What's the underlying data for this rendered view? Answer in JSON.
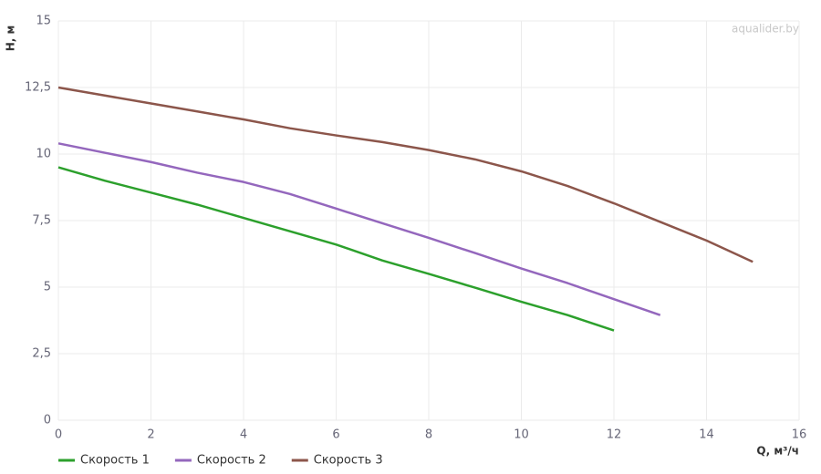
{
  "chart_data": {
    "type": "line",
    "watermark": "aqualider.by",
    "x_label": "Q, м³/ч",
    "y_label": "H, м",
    "xlim": [
      0,
      16
    ],
    "xticks": [
      0,
      2,
      4,
      6,
      8,
      10,
      12,
      14,
      16
    ],
    "ylim": [
      0,
      15
    ],
    "yticks": [
      0,
      {
        "value": 2.5,
        "label": "2,5"
      },
      5,
      {
        "value": 7.5,
        "label": "7,5"
      },
      10,
      {
        "value": 12.5,
        "label": "12,5"
      },
      15
    ],
    "grid": true,
    "legend": "bottom-left",
    "series": [
      {
        "name": "Скорость 1",
        "color": "#2ca02c",
        "x": [
          0,
          1,
          2,
          3,
          4,
          5,
          6,
          7,
          8,
          9,
          10,
          11,
          12
        ],
        "values": [
          9.5,
          9.0,
          8.55,
          8.1,
          7.6,
          7.1,
          6.6,
          6.0,
          5.5,
          4.98,
          4.45,
          3.95,
          3.37
        ]
      },
      {
        "name": "Скорость 2",
        "color": "#9467bd",
        "x": [
          0,
          1,
          2,
          3,
          4,
          5,
          6,
          7,
          8,
          9,
          10,
          11,
          12,
          13
        ],
        "values": [
          10.4,
          10.05,
          9.7,
          9.3,
          8.95,
          8.5,
          7.95,
          7.4,
          6.85,
          6.28,
          5.7,
          5.15,
          4.55,
          3.95
        ]
      },
      {
        "name": "Скорость 3",
        "color": "#8c564b",
        "x": [
          0,
          1,
          2,
          3,
          4,
          5,
          6,
          7,
          8,
          9,
          10,
          11,
          12,
          13,
          14,
          15
        ],
        "values": [
          12.5,
          12.2,
          11.9,
          11.6,
          11.3,
          10.97,
          10.7,
          10.45,
          10.15,
          9.8,
          9.35,
          8.8,
          8.15,
          7.45,
          6.75,
          5.95
        ]
      }
    ]
  }
}
